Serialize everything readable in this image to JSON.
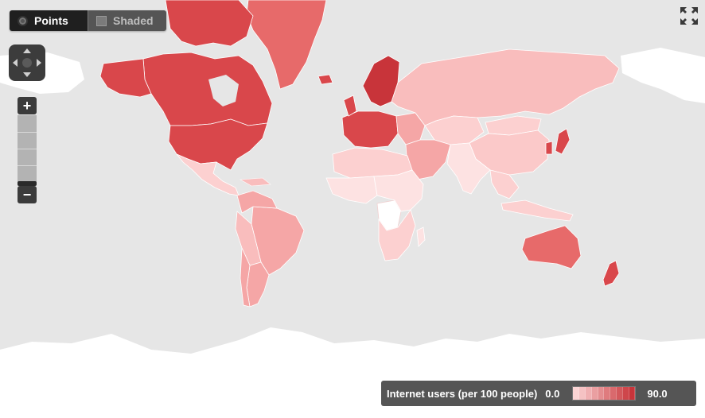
{
  "toolbar": {
    "tabs": [
      {
        "label": "Points",
        "selected": true
      },
      {
        "label": "Shaded",
        "selected": false
      }
    ]
  },
  "controls": {
    "pan_icon": "pan-arrows-icon",
    "zoom_in_label": "+",
    "zoom_out_label": "−",
    "fullscreen_icon": "fullscreen-expand-icon"
  },
  "legend": {
    "title": "Internet users (per 100 people)",
    "min_label": "0.0",
    "max_label": "90.0",
    "min_color": "#fbd4d4",
    "max_color": "#c8343a"
  },
  "colors": {
    "ocean": "#e6e6e6",
    "no_data_land": "#ffffff",
    "low": "#fde2e2",
    "low_mid": "#f9bdbd",
    "mid": "#f5a6a6",
    "high": "#e76a6a",
    "very_high": "#d9474b",
    "border": "#ffffff"
  }
}
